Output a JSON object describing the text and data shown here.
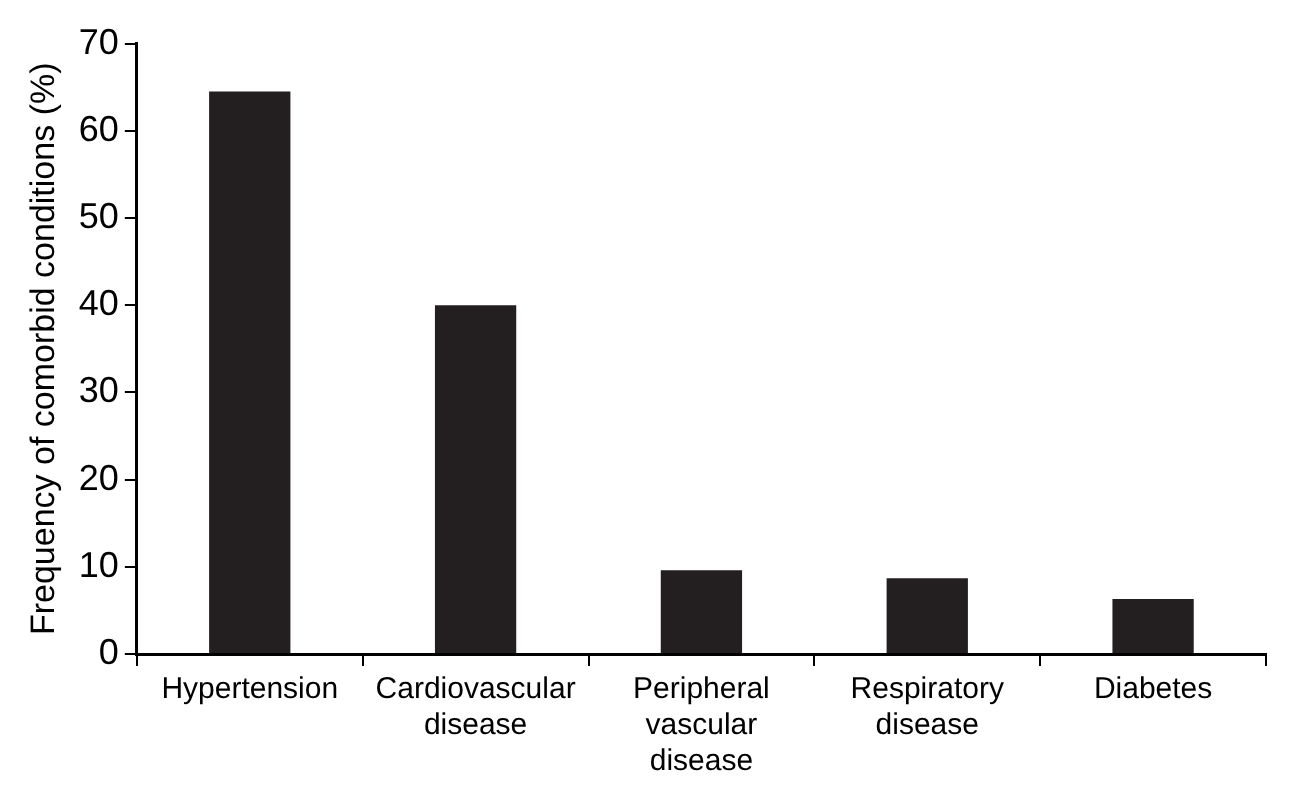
{
  "chart_data": {
    "type": "bar",
    "ylabel": "Frequency of comorbid conditions (%)",
    "categories": [
      "Hypertension",
      "Cardiovascular disease",
      "Peripheral vascular disease",
      "Respiratory disease",
      "Diabetes"
    ],
    "values": [
      64.5,
      40,
      9.6,
      8.7,
      6.3
    ],
    "color": "#231f20",
    "ylim": [
      0,
      70
    ],
    "yticks": [
      0,
      10,
      20,
      30,
      40,
      50,
      60,
      70
    ],
    "grid": false,
    "legend": false
  }
}
